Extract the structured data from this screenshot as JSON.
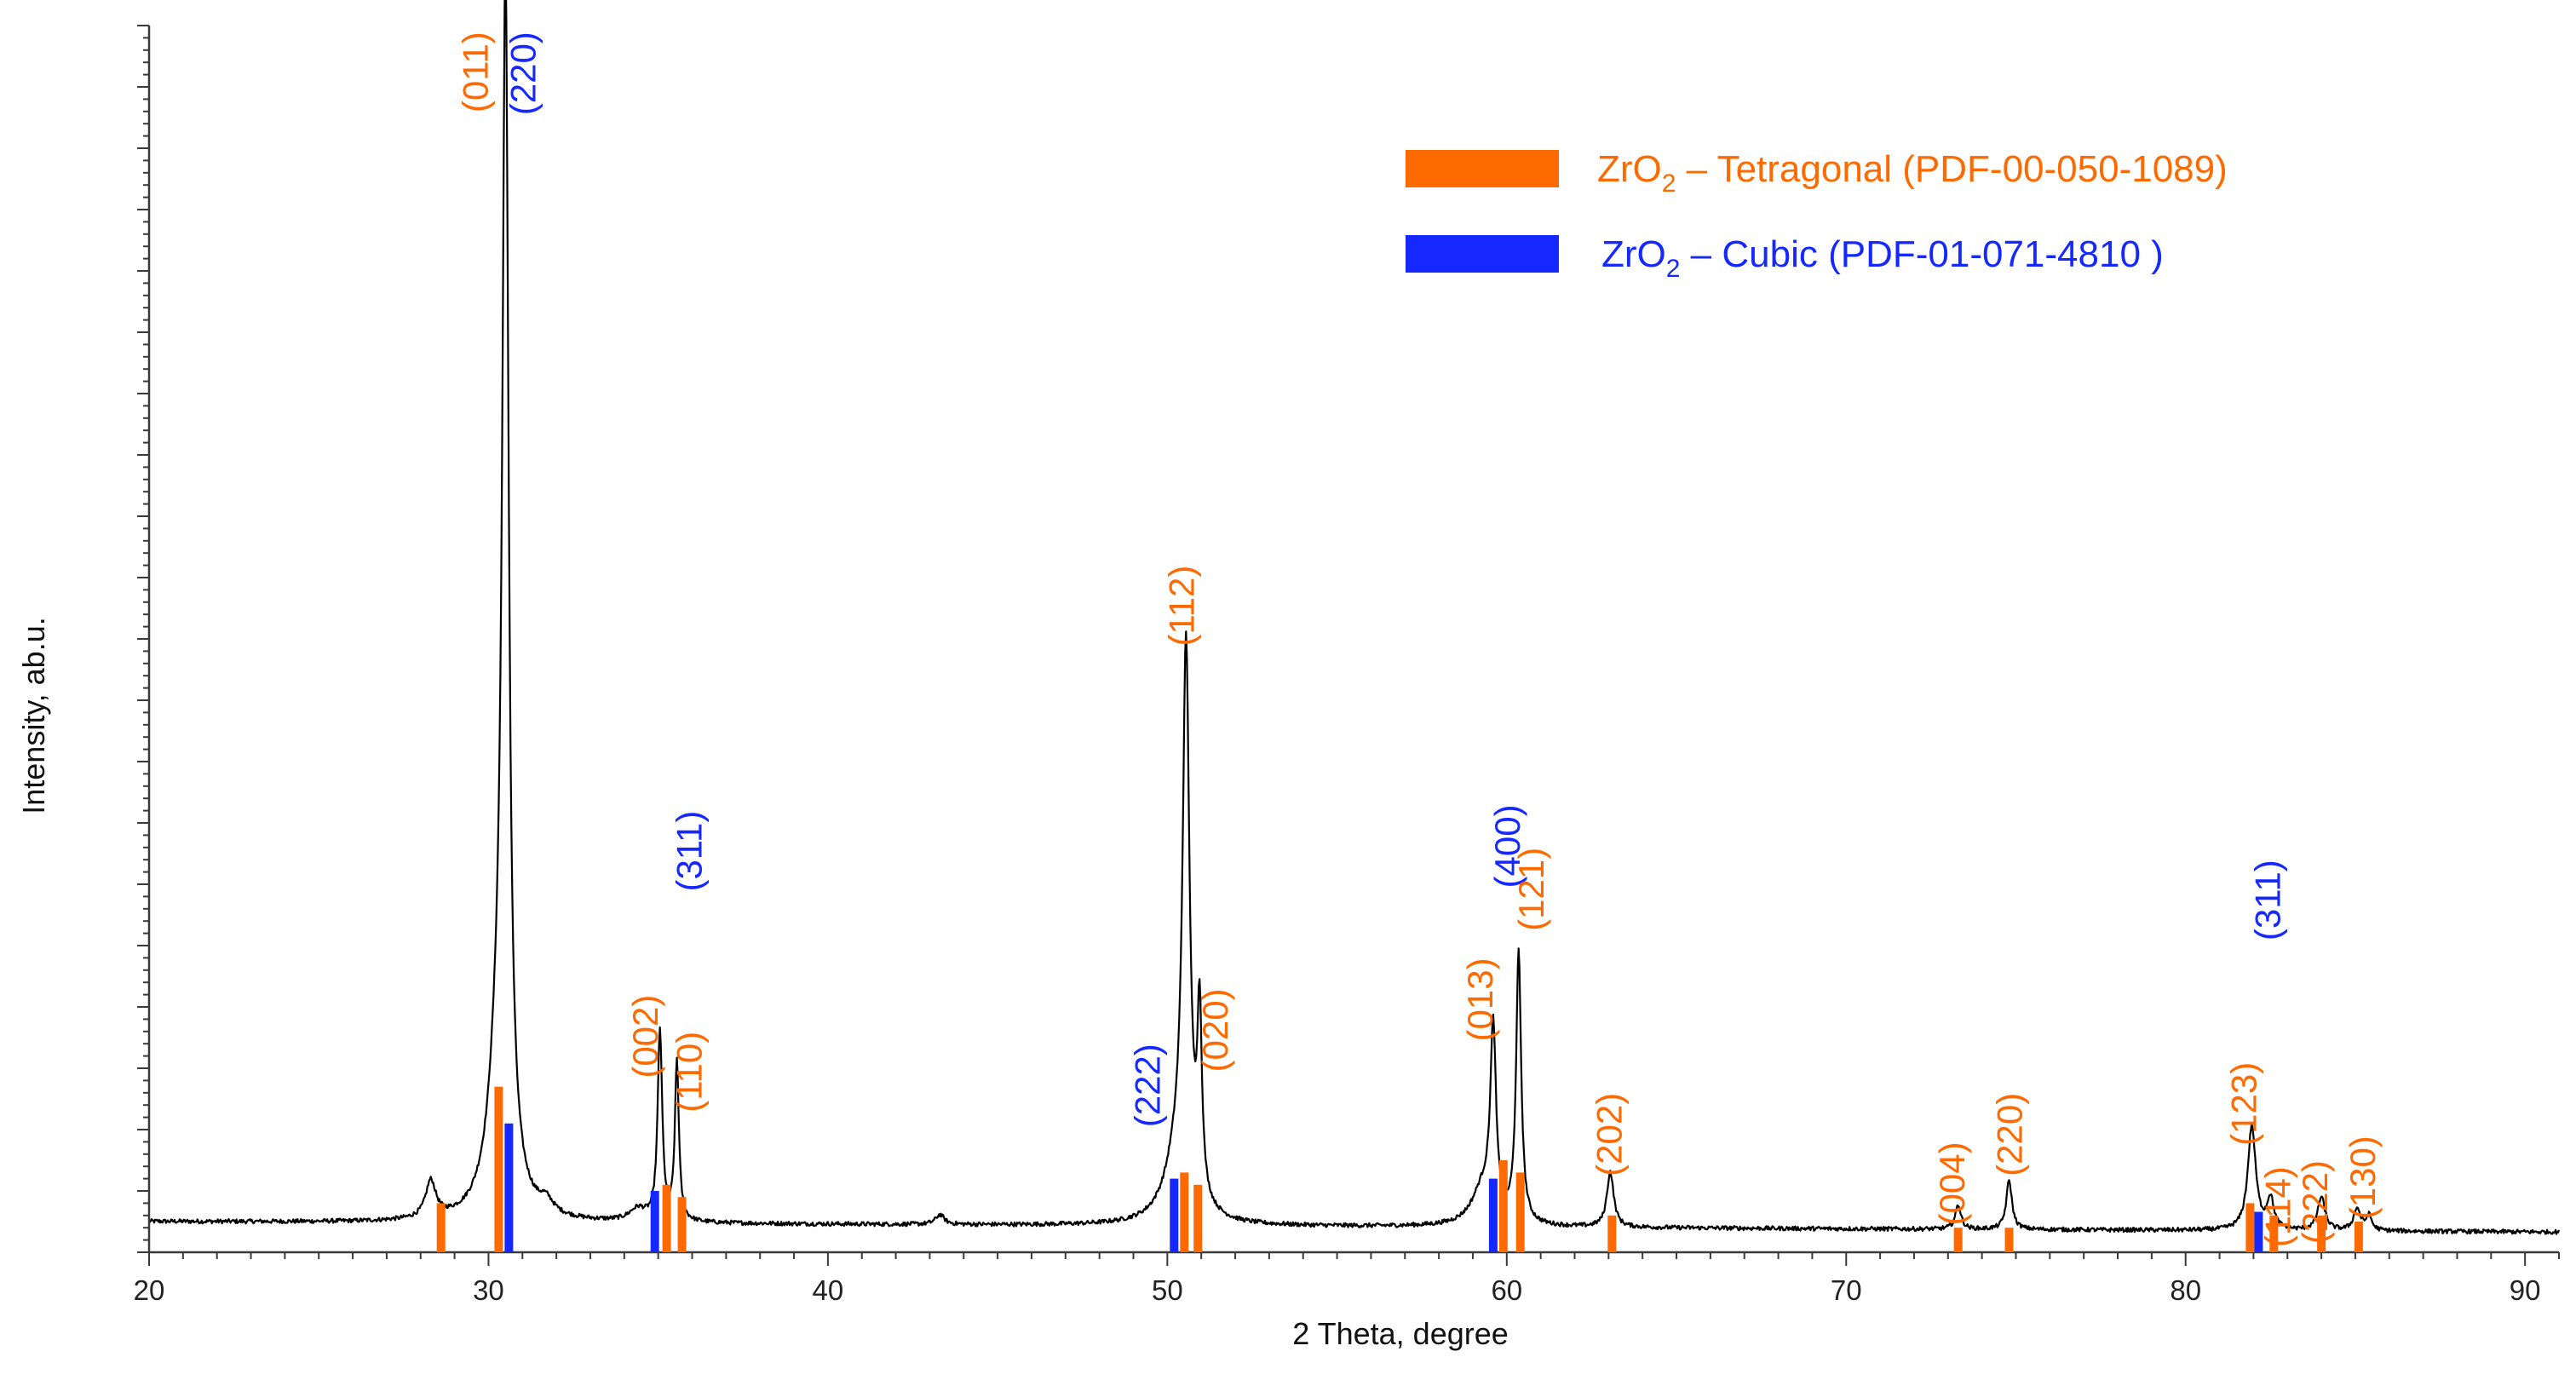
{
  "chart_data": {
    "type": "line",
    "title": "",
    "xlabel": "2 Theta, degree",
    "ylabel": "Intensity, ab.u.",
    "xlim": [
      20,
      91
    ],
    "ylim": [
      0,
      100
    ],
    "x_ticks": [
      20,
      30,
      40,
      50,
      60,
      70,
      80,
      90
    ],
    "x_tick_labels": [
      "20",
      "30",
      "40",
      "50",
      "60",
      "70",
      "80",
      "90"
    ],
    "y_tick_labels_shown": false,
    "background": 2.5,
    "peaks": [
      {
        "x": 28.3,
        "height": 3.0,
        "width": 0.18
      },
      {
        "x": 30.5,
        "height": 94.0,
        "width": 0.11
      },
      {
        "x": 30.3,
        "height": 12.0,
        "width": 0.35
      },
      {
        "x": 31.7,
        "height": 1.0,
        "width": 0.25
      },
      {
        "x": 34.4,
        "height": 1.0,
        "width": 0.3
      },
      {
        "x": 35.05,
        "height": 15.5,
        "width": 0.08
      },
      {
        "x": 35.55,
        "height": 13.0,
        "width": 0.07
      },
      {
        "x": 43.3,
        "height": 0.8,
        "width": 0.15
      },
      {
        "x": 50.55,
        "height": 44.0,
        "width": 0.12
      },
      {
        "x": 50.3,
        "height": 5.0,
        "width": 0.45
      },
      {
        "x": 50.95,
        "height": 15.0,
        "width": 0.08
      },
      {
        "x": 59.6,
        "height": 15.0,
        "width": 0.1
      },
      {
        "x": 59.3,
        "height": 3.0,
        "width": 0.4
      },
      {
        "x": 60.35,
        "height": 22.0,
        "width": 0.09
      },
      {
        "x": 63.05,
        "height": 4.5,
        "width": 0.12
      },
      {
        "x": 73.3,
        "height": 2.0,
        "width": 0.1
      },
      {
        "x": 74.8,
        "height": 4.0,
        "width": 0.1
      },
      {
        "x": 81.95,
        "height": 8.5,
        "width": 0.14
      },
      {
        "x": 82.5,
        "height": 2.5,
        "width": 0.12
      },
      {
        "x": 84.0,
        "height": 2.7,
        "width": 0.13
      },
      {
        "x": 85.05,
        "height": 1.8,
        "width": 0.12
      },
      {
        "x": 85.4,
        "height": 1.2,
        "width": 0.1
      }
    ],
    "series": [
      {
        "name": "ZrO2 – Tetragonal (PDF-00-050-1089)",
        "color": "#ff6a00",
        "sticks": [
          {
            "x": 28.6,
            "height": 4.0
          },
          {
            "x": 30.3,
            "height": 13.5
          },
          {
            "x": 35.25,
            "height": 5.5
          },
          {
            "x": 35.7,
            "height": 4.5
          },
          {
            "x": 50.5,
            "height": 6.5
          },
          {
            "x": 50.9,
            "height": 5.5
          },
          {
            "x": 59.9,
            "height": 7.5
          },
          {
            "x": 60.4,
            "height": 6.5
          },
          {
            "x": 63.1,
            "height": 3.0
          },
          {
            "x": 73.3,
            "height": 2.0
          },
          {
            "x": 74.8,
            "height": 2.0
          },
          {
            "x": 81.9,
            "height": 4.0
          },
          {
            "x": 82.6,
            "height": 3.0
          },
          {
            "x": 84.0,
            "height": 3.0
          },
          {
            "x": 85.1,
            "height": 2.5
          }
        ]
      },
      {
        "name": "ZrO2 – Cubic (PDF-01-071-4810 )",
        "color": "#1428ff",
        "sticks": [
          {
            "x": 30.6,
            "height": 10.5
          },
          {
            "x": 34.9,
            "height": 5.0
          },
          {
            "x": 50.2,
            "height": 6.0
          },
          {
            "x": 59.6,
            "height": 6.0
          },
          {
            "x": 82.15,
            "height": 3.3
          }
        ]
      }
    ],
    "annotations": [
      {
        "text": "(011)",
        "x": 29.7,
        "y": 99.5,
        "color": "#ff6a00"
      },
      {
        "text": "(220)",
        "x": 31.1,
        "y": 99.5,
        "color": "#1428ff"
      },
      {
        "text": "(002)",
        "x": 34.7,
        "y": 21.0,
        "color": "#ff6a00"
      },
      {
        "text": "(311)",
        "x": 36.0,
        "y": 36.0,
        "color": "#1428ff"
      },
      {
        "text": "(110)",
        "x": 36.0,
        "y": 18.0,
        "color": "#ff6a00"
      },
      {
        "text": "(222)",
        "x": 49.5,
        "y": 17.0,
        "color": "#1428ff"
      },
      {
        "text": "(112)",
        "x": 50.5,
        "y": 56.0,
        "color": "#ff6a00"
      },
      {
        "text": "(020)",
        "x": 51.5,
        "y": 21.5,
        "color": "#ff6a00"
      },
      {
        "text": "(013)",
        "x": 59.3,
        "y": 24.0,
        "color": "#ff6a00"
      },
      {
        "text": "(400)",
        "x": 60.1,
        "y": 36.5,
        "color": "#1428ff"
      },
      {
        "text": "(121)",
        "x": 60.8,
        "y": 33.0,
        "color": "#ff6a00"
      },
      {
        "text": "(202)",
        "x": 63.1,
        "y": 13.0,
        "color": "#ff6a00"
      },
      {
        "text": "(004)",
        "x": 73.2,
        "y": 9.0,
        "color": "#ff6a00"
      },
      {
        "text": "(220)",
        "x": 74.9,
        "y": 13.0,
        "color": "#ff6a00"
      },
      {
        "text": "(123)",
        "x": 81.8,
        "y": 15.5,
        "color": "#ff6a00"
      },
      {
        "text": "(311)",
        "x": 82.5,
        "y": 32.0,
        "color": "#1428ff"
      },
      {
        "text": "(114)",
        "x": 82.8,
        "y": 7.0,
        "color": "#ff6a00"
      },
      {
        "text": "(222)",
        "x": 83.9,
        "y": 7.5,
        "color": "#ff6a00"
      },
      {
        "text": "(130)",
        "x": 85.3,
        "y": 9.5,
        "color": "#ff6a00"
      }
    ],
    "legend": {
      "placement": "top-right",
      "entries": [
        {
          "prefix": "ZrO",
          "sub": "2",
          "suffix": " – Tetragonal (PDF-00-050-1089)",
          "color": "#ff6a00"
        },
        {
          "prefix": "ZrO",
          "sub": "2",
          "suffix": " – Cubic (PDF-01-071-4810 )",
          "color": "#1428ff"
        }
      ]
    }
  }
}
